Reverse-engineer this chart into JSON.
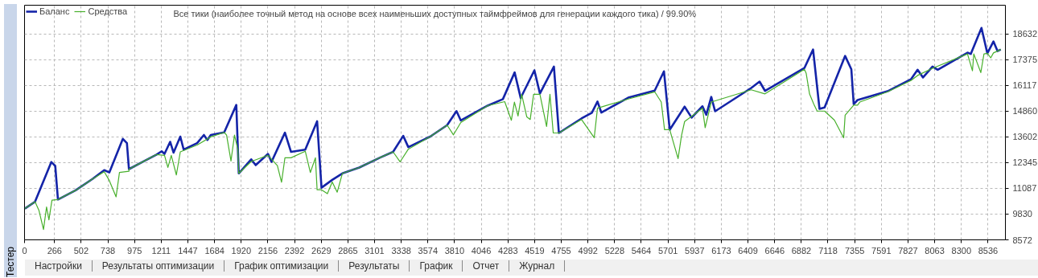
{
  "chart_data": {
    "type": "line",
    "title": "Все тики (наиболее точный метод на основе всех наименьших доступных таймфреймов для генерации каждого тика) / 99.90%",
    "xlim": [
      0,
      8690
    ],
    "ylim": [
      8572,
      20030
    ],
    "xticks": [
      0,
      266,
      502,
      738,
      975,
      1211,
      1447,
      1684,
      1920,
      2156,
      2392,
      2629,
      2865,
      3101,
      3338,
      3574,
      3810,
      4046,
      4283,
      4519,
      4755,
      4992,
      5228,
      5464,
      5701,
      5937,
      6173,
      6409,
      6646,
      6882,
      7118,
      7355,
      7591,
      7827,
      8063,
      8300,
      8536
    ],
    "yticks": [
      8572,
      9830,
      11087,
      12345,
      13602,
      14860,
      16117,
      17375,
      18632
    ],
    "grid": true,
    "legend": "top left",
    "line_style": "solid",
    "annotations": [
      "Тестер",
      "Настройки",
      "Результаты оптимизации",
      "График оптимизации",
      "Результаты",
      "График",
      "Отчет",
      "Журнал"
    ],
    "series": [
      {
        "name": "Баланс",
        "color": "#1424a8",
        "x": [
          3,
          93,
          237,
          272,
          296,
          452,
          602,
          706,
          751,
          871,
          907,
          925,
          1051,
          1170,
          1215,
          1240,
          1290,
          1320,
          1380,
          1410,
          1529,
          1589,
          1620,
          1650,
          1769,
          1876,
          1898,
          2008,
          2048,
          2157,
          2188,
          2307,
          2361,
          2487,
          2592,
          2631,
          2726,
          2816,
          2966,
          3146,
          3265,
          3355,
          3400,
          3594,
          3744,
          3827,
          3865,
          4103,
          4238,
          4342,
          4396,
          4404,
          4517,
          4566,
          4690,
          4734,
          4934,
          5026,
          5076,
          5110,
          5348,
          5583,
          5665,
          5716,
          5848,
          5910,
          6006,
          6040,
          6084,
          6118,
          6438,
          6512,
          6560,
          6909,
          6986,
          7043,
          7088,
          7270,
          7325,
          7346,
          7380,
          7646,
          7853,
          7912,
          7960,
          8044,
          8090,
          8354,
          8383,
          8478,
          8530,
          8584,
          8620,
          8649
        ],
        "values": [
          10100,
          10433,
          12373,
          12184,
          10542,
          10989,
          11545,
          11976,
          11862,
          13504,
          13296,
          12025,
          12392,
          12740,
          12899,
          12770,
          13360,
          12830,
          13613,
          12978,
          13296,
          13693,
          13450,
          13690,
          13821,
          15160,
          11817,
          12502,
          12220,
          12770,
          12380,
          13806,
          12868,
          12978,
          14362,
          11117,
          11499,
          11817,
          12105,
          12581,
          12868,
          13648,
          13100,
          13613,
          14173,
          14858,
          14400,
          15126,
          15444,
          16749,
          15493,
          15595,
          16851,
          15720,
          17036,
          13791,
          14498,
          14780,
          15326,
          14790,
          15516,
          15860,
          16802,
          13950,
          15077,
          14540,
          15095,
          14680,
          15550,
          14850,
          15988,
          16302,
          15850,
          16960,
          17868,
          14968,
          15040,
          17554,
          16900,
          15202,
          15400,
          15830,
          16413,
          16880,
          16500,
          17036,
          16880,
          17713,
          17650,
          18920,
          17680,
          18262,
          17789,
          17868
        ]
      },
      {
        "name": "Средства",
        "color": "#48b02c",
        "x": [
          3,
          93,
          128,
          168,
          195,
          216,
          243,
          296,
          452,
          602,
          706,
          751,
          811,
          841,
          925,
          925,
          1051,
          1170,
          1240,
          1270,
          1300,
          1345,
          1380,
          1529,
          1650,
          1769,
          1790,
          1829,
          1860,
          1890,
          1898,
          2008,
          2157,
          2240,
          2277,
          2307,
          2361,
          2487,
          2532,
          2577,
          2592,
          2631,
          2683,
          2726,
          2770,
          2816,
          2966,
          3146,
          3265,
          3327,
          3400,
          3594,
          3744,
          3800,
          3865,
          4103,
          4254,
          4313,
          4340,
          4372,
          4404,
          4450,
          4480,
          4510,
          4566,
          4625,
          4655,
          4684,
          4734,
          4934,
          5047,
          5076,
          5348,
          5583,
          5641,
          5670,
          5716,
          5790,
          5820,
          5848,
          6006,
          6030,
          6084,
          6438,
          6560,
          6909,
          6925,
          6955,
          6992,
          7022,
          7088,
          7175,
          7257,
          7270,
          7346,
          7380,
          7400,
          7646,
          7853,
          7912,
          8044,
          8354,
          8398,
          8410,
          8472,
          8500,
          8530,
          8560,
          8584,
          8649
        ],
        "values": [
          10100,
          10433,
          10000,
          9079,
          10180,
          9550,
          10512,
          10542,
          10989,
          11545,
          11900,
          11470,
          10670,
          11860,
          11920,
          12025,
          12392,
          12740,
          12700,
          12105,
          12700,
          11740,
          12868,
          13200,
          13600,
          13821,
          13690,
          12422,
          13690,
          12980,
          11817,
          12400,
          12700,
          12200,
          11386,
          12580,
          12580,
          12900,
          11860,
          12580,
          11019,
          11019,
          10826,
          11400,
          10900,
          11817,
          12105,
          12581,
          12868,
          12380,
          13000,
          13613,
          14173,
          13700,
          14300,
          15126,
          15320,
          14411,
          15300,
          14620,
          15677,
          14574,
          14450,
          15677,
          15677,
          14106,
          15677,
          13790,
          13791,
          14450,
          13557,
          15000,
          15450,
          15800,
          15300,
          13950,
          13950,
          12540,
          13650,
          14350,
          15000,
          14050,
          15300,
          15900,
          15700,
          16900,
          16700,
          15690,
          15200,
          14860,
          14860,
          14418,
          13557,
          14660,
          15150,
          15150,
          15300,
          15800,
          16350,
          16600,
          16950,
          17650,
          16830,
          17650,
          16741,
          17650,
          17680,
          17460,
          17700,
          17868
        ]
      }
    ]
  }
}
